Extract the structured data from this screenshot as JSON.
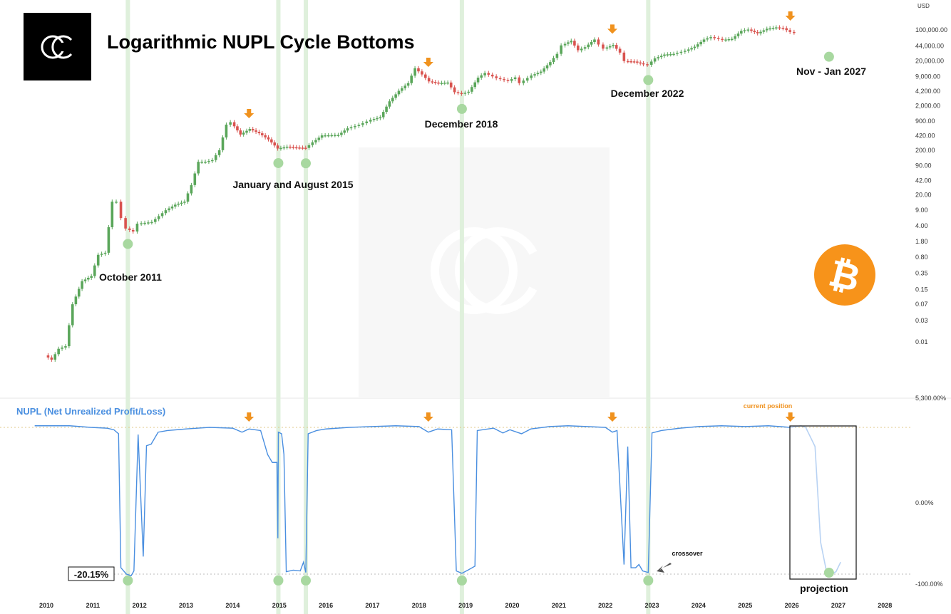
{
  "title": "Logarithmic NUPL Cycle Bottoms",
  "colors": {
    "up_candle": "#5aa65a",
    "down_candle": "#d9534f",
    "nupl_line": "#4a8fe0",
    "projection_line": "#b8d2f3",
    "bottom_marker": "#a8d8a0",
    "cycle_band": "#dff0dc",
    "top_arrow": "#f0921e",
    "current_label": "#f0921e",
    "bitcoin": "#f7931a"
  },
  "icons": {
    "brand_logo": "cc-logo-icon",
    "watermark": "cc-watermark-icon",
    "bitcoin": "bitcoin-icon"
  },
  "annotations": [
    {
      "id": "oct2011",
      "text": "October 2011",
      "year": 2011.75
    },
    {
      "id": "jan_aug2015",
      "text": "January and August 2015",
      "year": 2015.3
    },
    {
      "id": "dec2018",
      "text": "December 2018",
      "year": 2018.92
    },
    {
      "id": "dec2022",
      "text": "December 2022",
      "year": 2022.92
    },
    {
      "id": "nov_jan2027",
      "text": "Nov - Jan 2027",
      "year": 2026.8
    }
  ],
  "lower_labels": {
    "nupl_title": "NUPL (Net Unrealized Profit/Loss)",
    "current_position": "current position",
    "crossover": "crossover",
    "projection": "projection",
    "nupl_value_box": "-20.15%"
  },
  "chart_data": [
    {
      "type": "candlestick",
      "scale": "log",
      "unit": "USD",
      "y_ticks": [
        "0.01",
        "0.03",
        "0.07",
        "0.15",
        "0.35",
        "0.80",
        "1.80",
        "4.00",
        "9.00",
        "20.00",
        "42.00",
        "90.00",
        "200.00",
        "420.00",
        "900.00",
        "2,000.00",
        "4,200.00",
        "9,000.00",
        "20,000.00",
        "44,000.00",
        "100,000.00"
      ],
      "ylim": [
        0.003,
        210000
      ],
      "xlim": [
        2009.75,
        2028.2
      ],
      "x_ticks": [
        "2010",
        "2011",
        "2012",
        "2013",
        "2014",
        "2015",
        "2016",
        "2017",
        "2018",
        "2019",
        "2020",
        "2021",
        "2022",
        "2023",
        "2024",
        "2025",
        "2026",
        "2027",
        "2028"
      ],
      "price_path": [
        [
          2010.0,
          0.005
        ],
        [
          2010.15,
          0.004
        ],
        [
          2010.3,
          0.007
        ],
        [
          2010.45,
          0.008
        ],
        [
          2010.6,
          0.07
        ],
        [
          2010.8,
          0.23
        ],
        [
          2011.0,
          0.3
        ],
        [
          2011.15,
          0.9
        ],
        [
          2011.3,
          1.0
        ],
        [
          2011.45,
          14
        ],
        [
          2011.55,
          14
        ],
        [
          2011.65,
          6
        ],
        [
          2011.75,
          3.5
        ],
        [
          2011.9,
          3.0
        ],
        [
          2012.0,
          4.5
        ],
        [
          2012.3,
          4.9
        ],
        [
          2012.6,
          9
        ],
        [
          2012.8,
          12
        ],
        [
          2013.0,
          14
        ],
        [
          2013.15,
          33
        ],
        [
          2013.3,
          110
        ],
        [
          2013.45,
          110
        ],
        [
          2013.6,
          120
        ],
        [
          2013.75,
          200
        ],
        [
          2013.9,
          750
        ],
        [
          2014.0,
          850
        ],
        [
          2014.2,
          450
        ],
        [
          2014.4,
          600
        ],
        [
          2014.6,
          480
        ],
        [
          2014.8,
          350
        ],
        [
          2015.0,
          218
        ],
        [
          2015.2,
          240
        ],
        [
          2015.4,
          230
        ],
        [
          2015.6,
          225
        ],
        [
          2015.75,
          300
        ],
        [
          2015.95,
          430
        ],
        [
          2016.3,
          440
        ],
        [
          2016.5,
          620
        ],
        [
          2016.75,
          740
        ],
        [
          2017.0,
          960
        ],
        [
          2017.2,
          1100
        ],
        [
          2017.4,
          2500
        ],
        [
          2017.6,
          4300
        ],
        [
          2017.8,
          6400
        ],
        [
          2017.95,
          13800
        ],
        [
          2018.1,
          10000
        ],
        [
          2018.25,
          7000
        ],
        [
          2018.45,
          6400
        ],
        [
          2018.65,
          6600
        ],
        [
          2018.8,
          4000
        ],
        [
          2018.95,
          3700
        ],
        [
          2019.1,
          4100
        ],
        [
          2019.3,
          8500
        ],
        [
          2019.45,
          10800
        ],
        [
          2019.7,
          8300
        ],
        [
          2019.95,
          7200
        ],
        [
          2020.1,
          8600
        ],
        [
          2020.2,
          6400
        ],
        [
          2020.45,
          9500
        ],
        [
          2020.65,
          11600
        ],
        [
          2020.85,
          19000
        ],
        [
          2021.0,
          29000
        ],
        [
          2021.1,
          45000
        ],
        [
          2021.3,
          57000
        ],
        [
          2021.45,
          35000
        ],
        [
          2021.6,
          41000
        ],
        [
          2021.8,
          61000
        ],
        [
          2021.9,
          47000
        ],
        [
          2022.0,
          38000
        ],
        [
          2022.2,
          46000
        ],
        [
          2022.35,
          31000
        ],
        [
          2022.45,
          20000
        ],
        [
          2022.65,
          19500
        ],
        [
          2022.85,
          17000
        ],
        [
          2022.95,
          16500
        ],
        [
          2023.1,
          23000
        ],
        [
          2023.3,
          28000
        ],
        [
          2023.5,
          29000
        ],
        [
          2023.75,
          34000
        ],
        [
          2023.95,
          42000
        ],
        [
          2024.15,
          61000
        ],
        [
          2024.3,
          69000
        ],
        [
          2024.55,
          60000
        ],
        [
          2024.75,
          63000
        ],
        [
          2024.95,
          95000
        ],
        [
          2025.1,
          102000
        ],
        [
          2025.3,
          84000
        ],
        [
          2025.5,
          106000
        ],
        [
          2025.7,
          114000
        ],
        [
          2025.85,
          109000
        ],
        [
          2026.0,
          90000
        ],
        [
          2026.1,
          87000
        ]
      ],
      "bottom_markers_year": [
        2011.75,
        2014.98,
        2015.57,
        2018.92,
        2022.92,
        2026.8
      ],
      "top_arrows_year": [
        2014.35,
        2018.2,
        2022.15,
        2025.97
      ],
      "cycle_bands_year": [
        2011.75,
        2014.98,
        2015.57,
        2018.92,
        2022.92
      ]
    },
    {
      "type": "line",
      "name": "NUPL (Net Unrealized Profit/Loss)",
      "y_ticks": [
        "-100.00%",
        "0.00%",
        "5,300.00%"
      ],
      "ylim": [
        -1.15,
        1.2
      ],
      "x_ticks": [
        "2010",
        "2011",
        "2012",
        "2013",
        "2014",
        "2015",
        "2016",
        "2017",
        "2018",
        "2019",
        "2020",
        "2021",
        "2022",
        "2023",
        "2024",
        "2025",
        "2026",
        "2027",
        "2028"
      ],
      "points": [
        [
          2009.75,
          0.96
        ],
        [
          2010.5,
          0.96
        ],
        [
          2010.95,
          0.94
        ],
        [
          2011.3,
          0.93
        ],
        [
          2011.45,
          0.91
        ],
        [
          2011.55,
          0.86
        ],
        [
          2011.6,
          -0.82
        ],
        [
          2011.72,
          -0.9
        ],
        [
          2011.82,
          -0.92
        ],
        [
          211.0,
          0
        ],
        [
          2011.88,
          -0.86
        ],
        [
          2011.97,
          0.85
        ],
        [
          2012.08,
          -0.68
        ],
        [
          2012.15,
          0.71
        ],
        [
          2012.25,
          0.73
        ],
        [
          2012.4,
          0.88
        ],
        [
          2012.6,
          0.9
        ],
        [
          2013.0,
          0.92
        ],
        [
          2013.5,
          0.94
        ],
        [
          2014.0,
          0.93
        ],
        [
          2014.2,
          0.88
        ],
        [
          2014.35,
          0.92
        ],
        [
          2014.6,
          0.9
        ],
        [
          2014.75,
          0.6
        ],
        [
          2014.85,
          0.5
        ],
        [
          2014.95,
          0.5
        ],
        [
          2014.97,
          -0.45
        ],
        [
          2014.98,
          0.88
        ],
        [
          2015.05,
          0.86
        ],
        [
          2015.1,
          0.6
        ],
        [
          2015.15,
          -0.87
        ],
        [
          2015.3,
          -0.85
        ],
        [
          2015.45,
          -0.86
        ],
        [
          2015.52,
          -0.75
        ],
        [
          2015.57,
          -0.88
        ],
        [
          2015.62,
          0.86
        ],
        [
          2015.8,
          0.9
        ],
        [
          2016.0,
          0.92
        ],
        [
          2016.5,
          0.94
        ],
        [
          2017.0,
          0.95
        ],
        [
          2017.5,
          0.96
        ],
        [
          2018.0,
          0.95
        ],
        [
          2018.2,
          0.88
        ],
        [
          2018.4,
          0.92
        ],
        [
          2018.7,
          0.91
        ],
        [
          2018.8,
          -0.86
        ],
        [
          2018.92,
          -0.89
        ],
        [
          2019.05,
          -0.85
        ],
        [
          2019.2,
          -0.8
        ],
        [
          2019.25,
          0.9
        ],
        [
          2019.6,
          0.93
        ],
        [
          2019.8,
          0.87
        ],
        [
          2019.95,
          0.91
        ],
        [
          2020.2,
          0.86
        ],
        [
          2020.4,
          0.92
        ],
        [
          2020.8,
          0.95
        ],
        [
          2021.2,
          0.96
        ],
        [
          2021.6,
          0.95
        ],
        [
          2022.0,
          0.94
        ],
        [
          2022.15,
          0.88
        ],
        [
          2022.25,
          0.9
        ],
        [
          2022.4,
          -0.78
        ],
        [
          2022.48,
          0.7
        ],
        [
          2022.55,
          -0.82
        ],
        [
          2022.65,
          -0.82
        ],
        [
          2022.72,
          -0.78
        ],
        [
          2022.8,
          -0.86
        ],
        [
          2022.92,
          -0.88
        ],
        [
          2023.0,
          0.87
        ],
        [
          2023.2,
          0.9
        ],
        [
          2023.6,
          0.93
        ],
        [
          2024.0,
          0.95
        ],
        [
          2024.5,
          0.96
        ],
        [
          2025.0,
          0.95
        ],
        [
          2025.5,
          0.96
        ],
        [
          2025.97,
          0.94
        ]
      ],
      "projection_points": [
        [
          2025.97,
          0.94
        ],
        [
          2026.2,
          0.96
        ],
        [
          2026.3,
          0.94
        ],
        [
          2026.5,
          0.7
        ],
        [
          2026.62,
          -0.5
        ],
        [
          2026.75,
          -0.88
        ],
        [
          2026.85,
          -0.9
        ],
        [
          2026.95,
          -0.87
        ],
        [
          2027.05,
          -0.75
        ]
      ],
      "bottom_markers_year": [
        2011.75,
        2014.98,
        2015.57,
        2018.92,
        2022.92,
        2026.8
      ],
      "top_arrows_year": [
        2014.35,
        2018.2,
        2022.15,
        2025.97
      ]
    }
  ]
}
